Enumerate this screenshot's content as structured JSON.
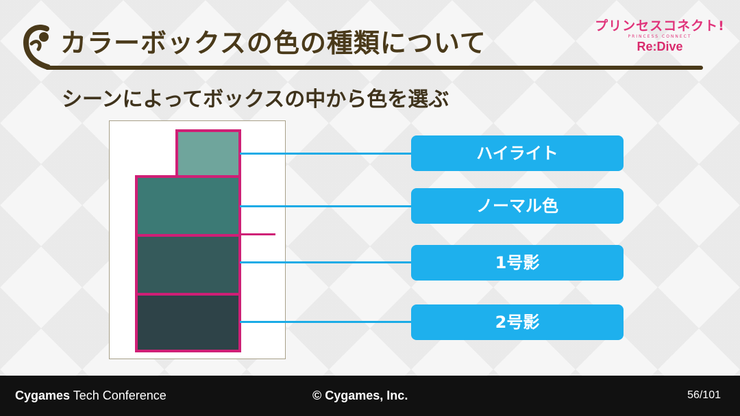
{
  "header": {
    "title": "カラーボックスの色の種類について",
    "logo": {
      "main": "プリンセスコネクト!",
      "sub": "PRINCESS CONNECT",
      "redive": "Re:Dive"
    }
  },
  "subtitle": "シーンによってボックスの中から色を選ぶ",
  "diagram": {
    "swatches": [
      {
        "label": "ハイライト",
        "color": "#6fa59c"
      },
      {
        "label": "ノーマル色",
        "color": "#3c7a75"
      },
      {
        "label": "1号影",
        "color": "#355a5b"
      },
      {
        "label": "2号影",
        "color": "#2e4348"
      }
    ],
    "border_color": "#cf1f76",
    "connector_color": "#1aabe6"
  },
  "footer": {
    "brand": "Cygames",
    "event": "Tech Conference",
    "copyright": "© Cygames, Inc.",
    "page": "56/101"
  }
}
